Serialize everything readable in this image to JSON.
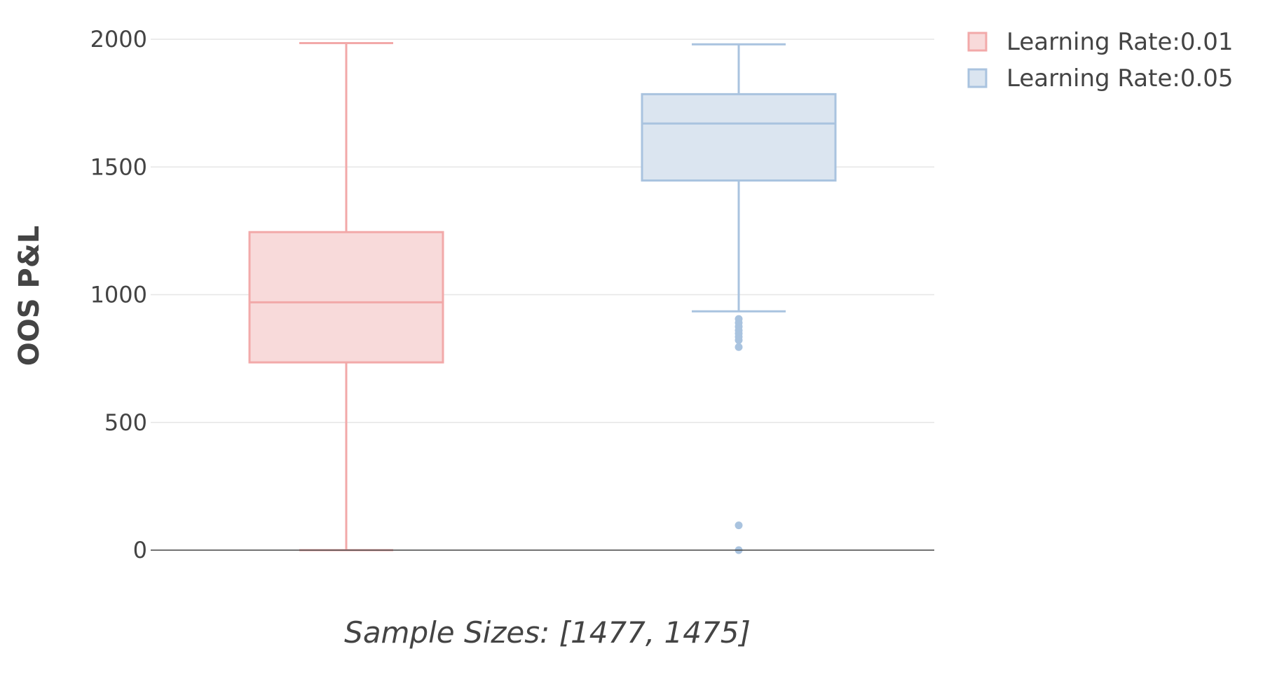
{
  "chart_data": {
    "type": "box",
    "xlabel": "Sample Sizes: [1477, 1475]",
    "ylabel": "OOS P&L",
    "ylim": [
      -80,
      2030
    ],
    "yticks": [
      0,
      500,
      1000,
      1500,
      2000
    ],
    "grid": true,
    "legend_position": "top-right",
    "series": [
      {
        "name": "Learning Rate:0.01",
        "color": "#f2a9a9",
        "fill": "#f8dada",
        "lower_whisker": 0,
        "q1": 735,
        "median": 970,
        "q3": 1245,
        "upper_whisker": 1985,
        "outliers": []
      },
      {
        "name": "Learning Rate:0.05",
        "color": "#a9c3df",
        "fill": "#dbe5f0",
        "lower_whisker": 935,
        "q1": 1447,
        "median": 1670,
        "q3": 1785,
        "upper_whisker": 1980,
        "outliers": [
          905,
          890,
          875,
          860,
          848,
          835,
          822,
          795,
          97,
          0
        ]
      }
    ]
  }
}
